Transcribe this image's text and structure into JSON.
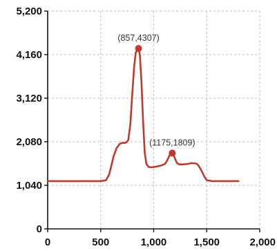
{
  "chart_data": {
    "type": "line",
    "title": "",
    "xlabel": "",
    "ylabel": "",
    "xlim": [
      0,
      2000
    ],
    "ylim": [
      0,
      5200
    ],
    "x_ticks": [
      0,
      500,
      1000,
      1500,
      2000
    ],
    "y_ticks": [
      0,
      1040,
      2080,
      3120,
      4160,
      5200
    ],
    "x_tick_labels": [
      "0",
      "500",
      "1,000",
      "1,500",
      "2,000"
    ],
    "y_tick_labels": [
      "0",
      "1,040",
      "2,080",
      "3,120",
      "4,160",
      "5,200"
    ],
    "grid": true,
    "line_color": "#c0392b",
    "series": [
      {
        "x": [
          0,
          300,
          500,
          550,
          580,
          600,
          620,
          650,
          680,
          700,
          720,
          740,
          760,
          780,
          800,
          815,
          830,
          845,
          857,
          870,
          885,
          900,
          915,
          930,
          950,
          980,
          1000,
          1050,
          1080,
          1110,
          1130,
          1150,
          1165,
          1175,
          1185,
          1200,
          1220,
          1240,
          1280,
          1320,
          1360,
          1400,
          1420,
          1440,
          1460,
          1480,
          1500,
          1550,
          1600,
          1700,
          1800
        ],
        "y": [
          1140,
          1140,
          1140,
          1160,
          1300,
          1500,
          1720,
          1930,
          2030,
          2050,
          2050,
          2060,
          2120,
          2500,
          3300,
          3850,
          4200,
          4280,
          4307,
          4150,
          3500,
          2550,
          1820,
          1560,
          1480,
          1470,
          1475,
          1500,
          1520,
          1560,
          1650,
          1760,
          1800,
          1809,
          1790,
          1680,
          1570,
          1540,
          1540,
          1550,
          1570,
          1560,
          1520,
          1440,
          1340,
          1240,
          1160,
          1140,
          1140,
          1140,
          1140
        ]
      }
    ],
    "annotations": [
      {
        "x": 857,
        "y": 4307,
        "label": "(857,4307)"
      },
      {
        "x": 1175,
        "y": 1809,
        "label": "(1175,1809)"
      }
    ]
  }
}
